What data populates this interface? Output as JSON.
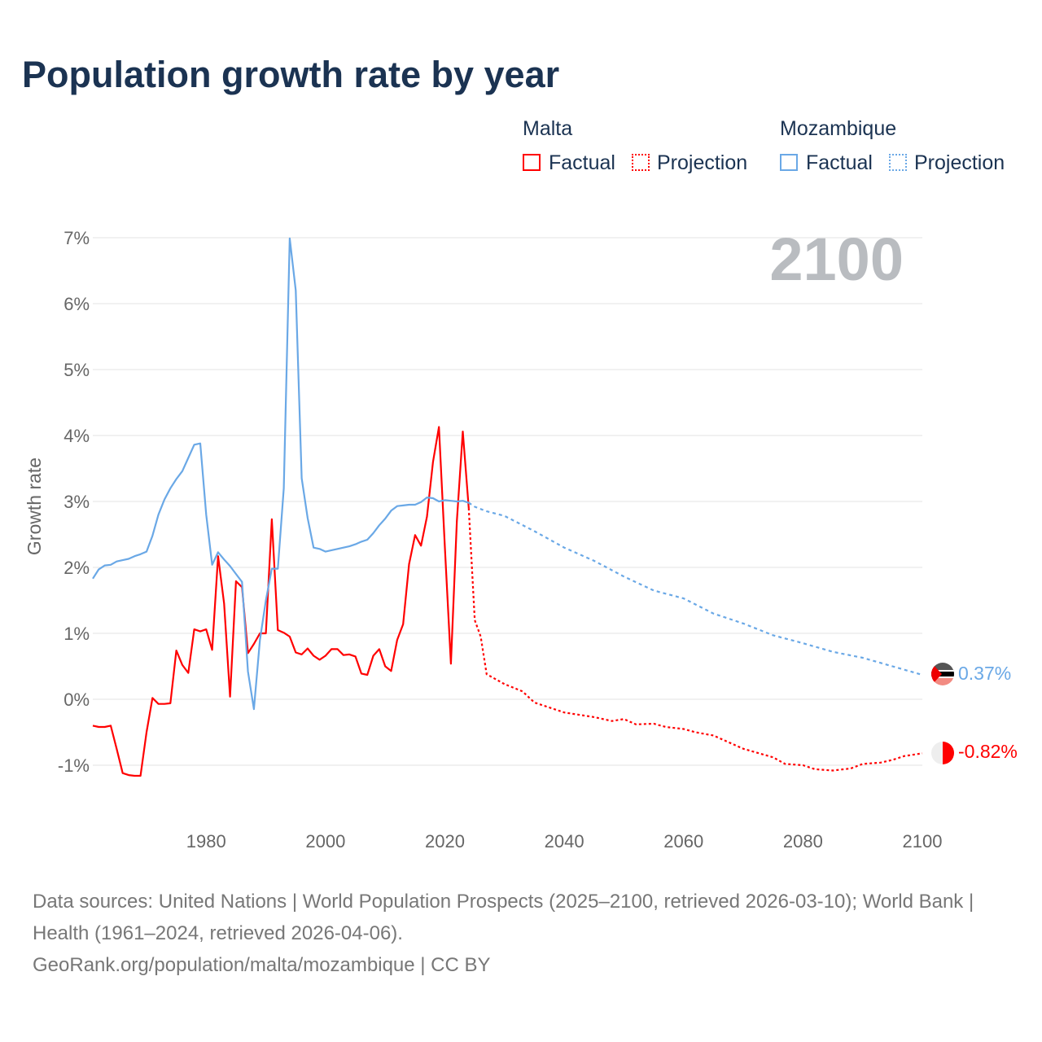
{
  "title": "Population growth rate by year",
  "legend": {
    "groups": [
      {
        "name": "Malta",
        "color": "#ff0000",
        "items": [
          "Factual",
          "Projection"
        ]
      },
      {
        "name": "Mozambique",
        "color": "#6aa8e6",
        "items": [
          "Factual",
          "Projection"
        ]
      }
    ]
  },
  "footer": {
    "sources": "Data sources: United Nations | World Population Prospects (2025–2100, retrieved 2026-03-10); World Bank | Health (1961–2024, retrieved 2026-04-06).",
    "credit": "GeoRank.org/population/malta/mozambique | CC BY"
  },
  "chart_data": {
    "type": "line",
    "title": "Population growth rate by year",
    "xlabel": "",
    "ylabel": "Growth rate",
    "xlim": [
      1961,
      2100
    ],
    "ylim": [
      -1.5,
      7
    ],
    "x_ticks": [
      "1980",
      "2000",
      "2020",
      "2040",
      "2060",
      "2080",
      "2100"
    ],
    "x_tick_values": [
      1980,
      2000,
      2020,
      2040,
      2060,
      2080,
      2100
    ],
    "y_ticks": [
      "-1%",
      "0%",
      "1%",
      "2%",
      "3%",
      "4%",
      "5%",
      "6%",
      "7%"
    ],
    "y_tick_values": [
      -1,
      0,
      1,
      2,
      3,
      4,
      5,
      6,
      7
    ],
    "current_year": "2100",
    "grid": true,
    "legend_position": "top-right",
    "end_labels": {
      "Mozambique": "0.37%",
      "Malta": "-0.82%"
    },
    "series": [
      {
        "name": "Malta",
        "kind": "Factual",
        "color": "#ff0000",
        "x": [
          1961,
          1962,
          1963,
          1964,
          1965,
          1966,
          1967,
          1968,
          1969,
          1970,
          1971,
          1972,
          1973,
          1974,
          1975,
          1976,
          1977,
          1978,
          1979,
          1980,
          1981,
          1982,
          1983,
          1984,
          1985,
          1986,
          1987,
          1988,
          1989,
          1990,
          1991,
          1992,
          1993,
          1994,
          1995,
          1996,
          1997,
          1998,
          1999,
          2000,
          2001,
          2002,
          2003,
          2004,
          2005,
          2006,
          2007,
          2008,
          2009,
          2010,
          2011,
          2012,
          2013,
          2014,
          2015,
          2016,
          2017,
          2018,
          2019,
          2020,
          2021,
          2022,
          2023,
          2024
        ],
        "values": [
          -0.4,
          -0.42,
          -0.42,
          -0.4,
          -0.75,
          -1.12,
          -1.15,
          -1.16,
          -1.16,
          -0.5,
          0.02,
          -0.07,
          -0.07,
          -0.06,
          0.74,
          0.52,
          0.4,
          1.06,
          1.03,
          1.06,
          0.75,
          2.17,
          1.45,
          0.04,
          1.79,
          1.7,
          0.7,
          0.84,
          1.0,
          1.0,
          2.73,
          1.05,
          1.01,
          0.95,
          0.71,
          0.68,
          0.77,
          0.66,
          0.6,
          0.66,
          0.76,
          0.76,
          0.67,
          0.68,
          0.65,
          0.39,
          0.37,
          0.66,
          0.76,
          0.5,
          0.43,
          0.9,
          1.14,
          2.05,
          2.49,
          2.33,
          2.77,
          3.6,
          4.13,
          2.3,
          0.54,
          2.7,
          4.06,
          2.9
        ]
      },
      {
        "name": "Malta",
        "kind": "Projection",
        "color": "#ff0000",
        "x": [
          2024,
          2025,
          2026,
          2027,
          2028,
          2030,
          2033,
          2035,
          2040,
          2045,
          2048,
          2050,
          2052,
          2055,
          2057,
          2060,
          2062,
          2065,
          2070,
          2075,
          2077,
          2080,
          2082,
          2085,
          2088,
          2090,
          2093,
          2095,
          2097,
          2100
        ],
        "values": [
          2.9,
          1.2,
          0.95,
          0.38,
          0.33,
          0.23,
          0.12,
          -0.05,
          -0.2,
          -0.27,
          -0.33,
          -0.3,
          -0.38,
          -0.37,
          -0.42,
          -0.45,
          -0.5,
          -0.55,
          -0.75,
          -0.88,
          -0.98,
          -1.0,
          -1.06,
          -1.08,
          -1.05,
          -0.98,
          -0.96,
          -0.92,
          -0.86,
          -0.82
        ]
      },
      {
        "name": "Mozambique",
        "kind": "Factual",
        "color": "#6aa8e6",
        "x": [
          1961,
          1962,
          1963,
          1964,
          1965,
          1966,
          1967,
          1968,
          1969,
          1970,
          1971,
          1972,
          1973,
          1974,
          1975,
          1976,
          1977,
          1978,
          1979,
          1980,
          1981,
          1982,
          1983,
          1984,
          1985,
          1986,
          1987,
          1988,
          1989,
          1990,
          1991,
          1992,
          1993,
          1994,
          1995,
          1996,
          1997,
          1998,
          1999,
          2000,
          2001,
          2002,
          2003,
          2004,
          2005,
          2006,
          2007,
          2008,
          2009,
          2010,
          2011,
          2012,
          2013,
          2014,
          2015,
          2016,
          2017,
          2018,
          2019,
          2020,
          2021,
          2022,
          2023,
          2024
        ],
        "values": [
          1.83,
          1.97,
          2.03,
          2.04,
          2.09,
          2.11,
          2.13,
          2.17,
          2.2,
          2.24,
          2.48,
          2.8,
          3.03,
          3.2,
          3.34,
          3.46,
          3.66,
          3.86,
          3.88,
          2.8,
          2.04,
          2.23,
          2.12,
          2.02,
          1.9,
          1.78,
          0.42,
          -0.15,
          0.9,
          1.5,
          1.98,
          1.98,
          3.2,
          6.99,
          6.2,
          3.35,
          2.75,
          2.3,
          2.28,
          2.24,
          2.26,
          2.28,
          2.3,
          2.32,
          2.35,
          2.39,
          2.42,
          2.52,
          2.64,
          2.74,
          2.86,
          2.93,
          2.94,
          2.95,
          2.95,
          2.99,
          3.06,
          3.05,
          3.0,
          3.02,
          3.01,
          3.0,
          3.01,
          2.98
        ]
      },
      {
        "name": "Mozambique",
        "kind": "Projection",
        "color": "#6aa8e6",
        "x": [
          2024,
          2025,
          2027,
          2030,
          2035,
          2040,
          2045,
          2050,
          2055,
          2060,
          2065,
          2070,
          2075,
          2080,
          2085,
          2090,
          2095,
          2100
        ],
        "values": [
          2.98,
          2.92,
          2.85,
          2.78,
          2.55,
          2.3,
          2.1,
          1.86,
          1.65,
          1.53,
          1.3,
          1.15,
          0.97,
          0.85,
          0.72,
          0.63,
          0.5,
          0.37
        ]
      }
    ]
  }
}
